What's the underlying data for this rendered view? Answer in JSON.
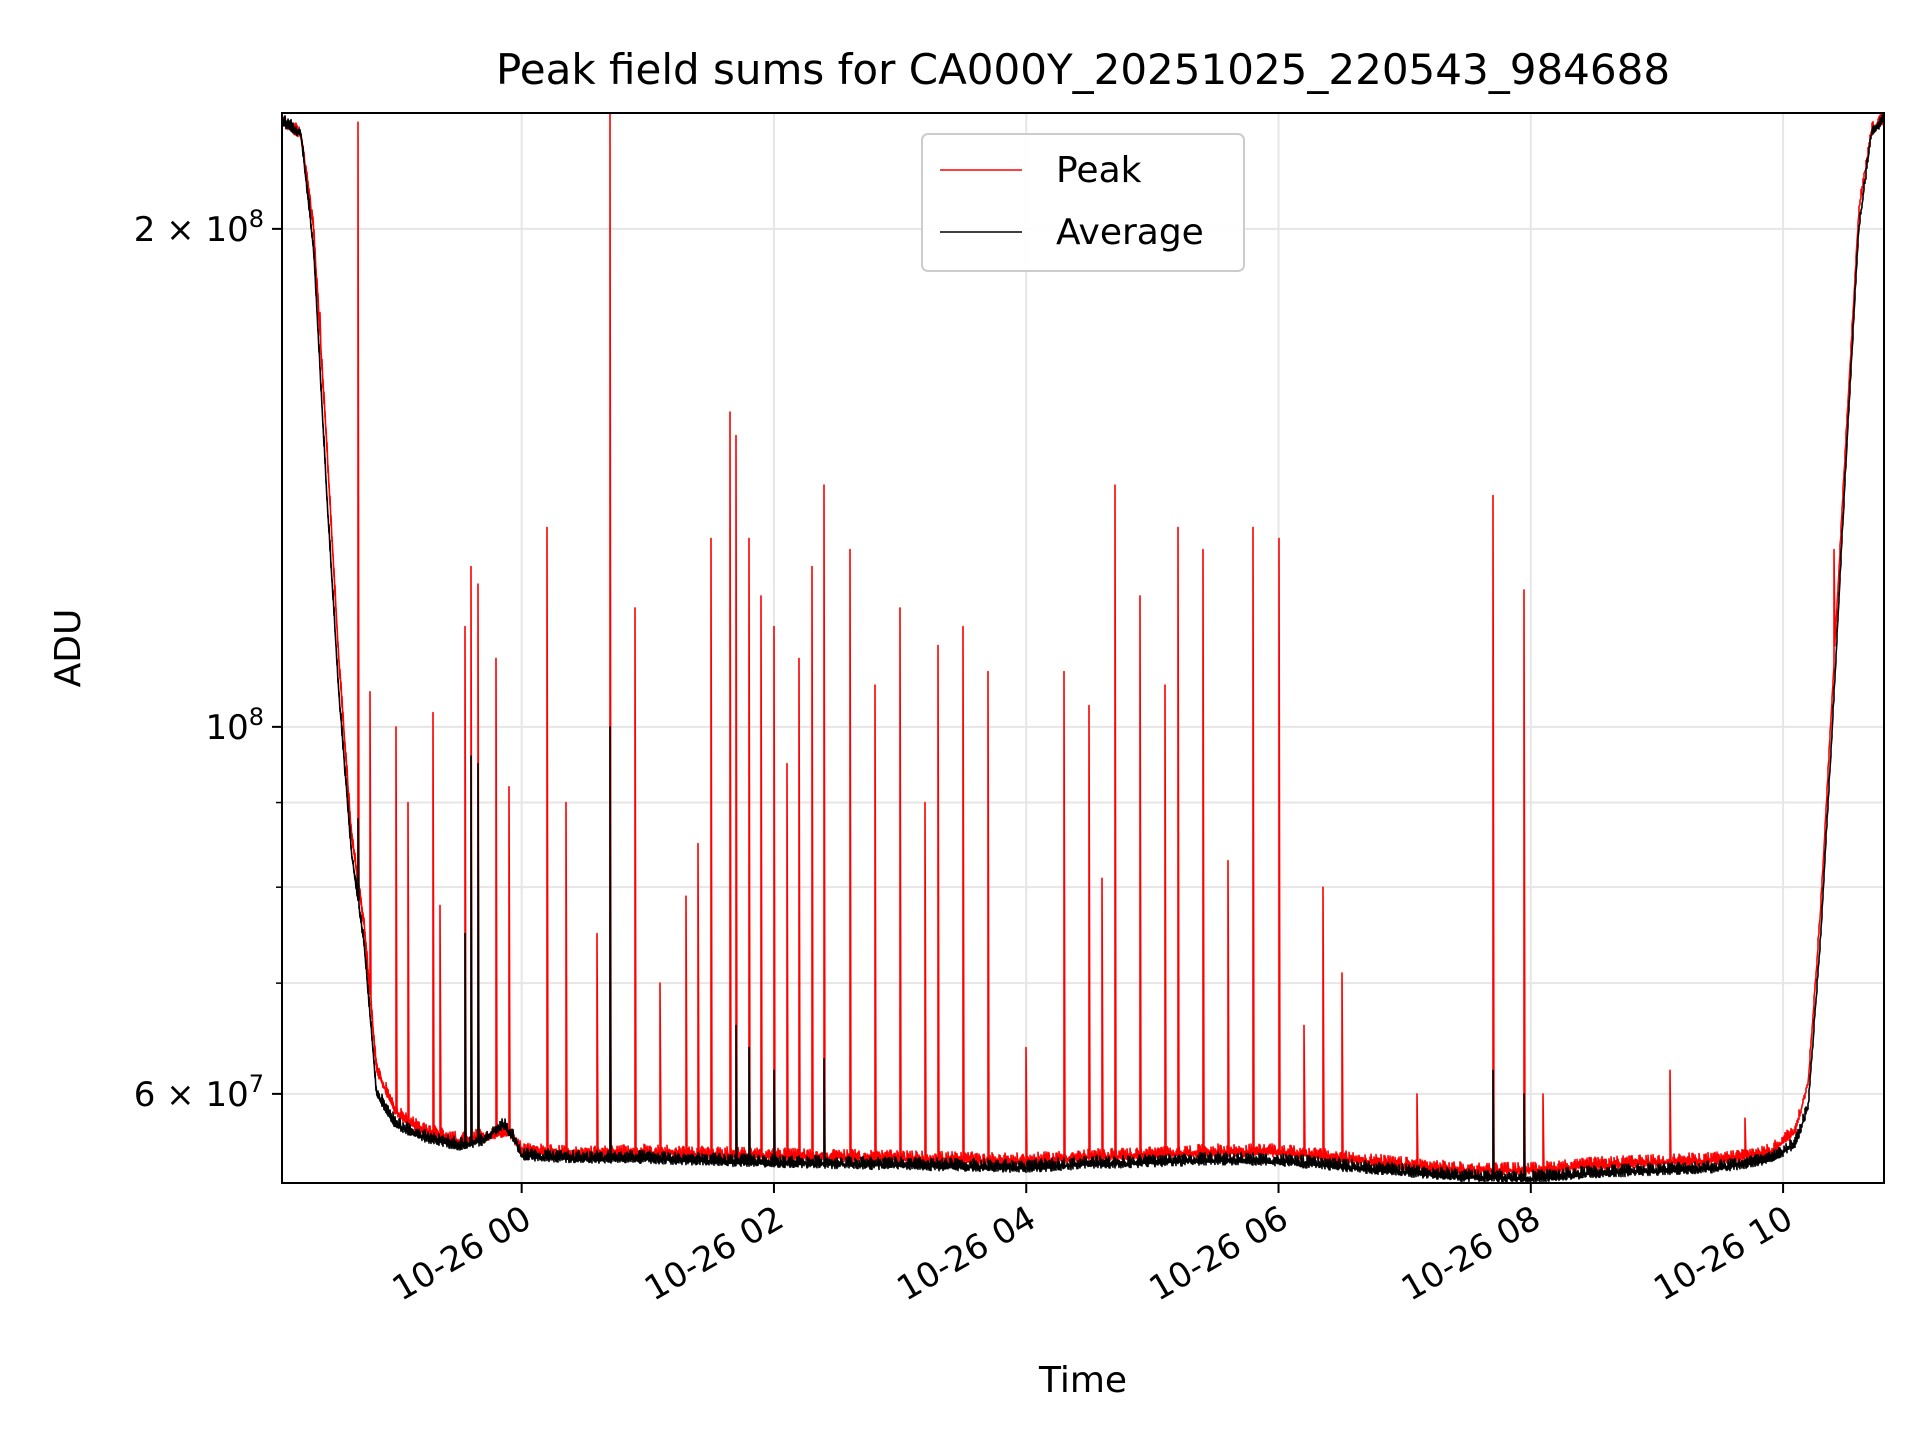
{
  "chart_data": {
    "type": "line",
    "title": "Peak field sums for CA000Y_20251025_220543_984688",
    "xlabel": "Time",
    "ylabel": "ADU",
    "yscale": "log",
    "ylim": [
      53000000,
      235000000
    ],
    "xlim_hours_from_2025_10_26_00": [
      -1.9,
      10.8
    ],
    "grid": true,
    "legend_position": "top-center",
    "x_ticks": [
      {
        "value": 0,
        "label": "10-26 00"
      },
      {
        "value": 2,
        "label": "10-26 02"
      },
      {
        "value": 4,
        "label": "10-26 04"
      },
      {
        "value": 6,
        "label": "10-26 06"
      },
      {
        "value": 8,
        "label": "10-26 08"
      },
      {
        "value": 10,
        "label": "10-26 10"
      }
    ],
    "y_major_ticks": [
      {
        "value": 200000000,
        "mantissa": "2",
        "times": "×",
        "base": "10",
        "exp": "8"
      },
      {
        "value": 100000000,
        "mantissa": "",
        "times": "",
        "base": "10",
        "exp": "8"
      },
      {
        "value": 60000000,
        "mantissa": "6",
        "times": "×",
        "base": "10",
        "exp": "7"
      }
    ],
    "y_minor_ticks": [
      70000000,
      80000000,
      90000000
    ],
    "series": [
      {
        "name": "Peak",
        "color": "#ff0000",
        "baseline": [
          [
            -1.9,
            232000000
          ],
          [
            -1.75,
            228000000
          ],
          [
            -1.65,
            200000000
          ],
          [
            -1.55,
            150000000
          ],
          [
            -1.45,
            110000000
          ],
          [
            -1.35,
            86000000
          ],
          [
            -1.25,
            76000000
          ],
          [
            -1.15,
            62000000
          ],
          [
            -1.0,
            58500000
          ],
          [
            -0.8,
            57000000
          ],
          [
            -0.5,
            56200000
          ],
          [
            -0.25,
            56600000
          ],
          [
            -0.1,
            56900000
          ],
          [
            0.0,
            55400000
          ],
          [
            0.5,
            55100000
          ],
          [
            1.0,
            55300000
          ],
          [
            1.5,
            55100000
          ],
          [
            2.0,
            55000000
          ],
          [
            2.5,
            54900000
          ],
          [
            3.0,
            54800000
          ],
          [
            3.5,
            54700000
          ],
          [
            4.0,
            54600000
          ],
          [
            4.5,
            54900000
          ],
          [
            5.0,
            55100000
          ],
          [
            5.5,
            55300000
          ],
          [
            6.0,
            55300000
          ],
          [
            6.5,
            54800000
          ],
          [
            7.0,
            54300000
          ],
          [
            7.5,
            53900000
          ],
          [
            8.0,
            53900000
          ],
          [
            8.5,
            54300000
          ],
          [
            9.0,
            54500000
          ],
          [
            9.5,
            54700000
          ],
          [
            9.9,
            55300000
          ],
          [
            10.1,
            57000000
          ],
          [
            10.2,
            61000000
          ],
          [
            10.3,
            78000000
          ],
          [
            10.4,
            108000000
          ],
          [
            10.5,
            150000000
          ],
          [
            10.6,
            205000000
          ],
          [
            10.7,
            229000000
          ],
          [
            10.8,
            233000000
          ]
        ],
        "spikes": [
          [
            -1.7,
            205000000
          ],
          [
            -1.6,
            178000000
          ],
          [
            -1.3,
            232000000
          ],
          [
            -1.2,
            105000000
          ],
          [
            -1.0,
            100000000
          ],
          [
            -0.9,
            90000000
          ],
          [
            -0.7,
            102000000
          ],
          [
            -0.65,
            78000000
          ],
          [
            -0.45,
            115000000
          ],
          [
            -0.4,
            125000000
          ],
          [
            -0.35,
            122000000
          ],
          [
            -0.2,
            110000000
          ],
          [
            -0.1,
            92000000
          ],
          [
            0.2,
            132000000
          ],
          [
            0.35,
            90000000
          ],
          [
            0.6,
            75000000
          ],
          [
            0.7,
            235000000
          ],
          [
            0.9,
            118000000
          ],
          [
            1.1,
            70000000
          ],
          [
            1.3,
            79000000
          ],
          [
            1.4,
            85000000
          ],
          [
            1.5,
            130000000
          ],
          [
            1.65,
            155000000
          ],
          [
            1.7,
            150000000
          ],
          [
            1.8,
            130000000
          ],
          [
            1.9,
            120000000
          ],
          [
            2.0,
            115000000
          ],
          [
            2.1,
            95000000
          ],
          [
            2.2,
            110000000
          ],
          [
            2.3,
            125000000
          ],
          [
            2.4,
            140000000
          ],
          [
            2.6,
            128000000
          ],
          [
            2.8,
            106000000
          ],
          [
            3.0,
            118000000
          ],
          [
            3.2,
            90000000
          ],
          [
            3.3,
            112000000
          ],
          [
            3.5,
            115000000
          ],
          [
            3.7,
            108000000
          ],
          [
            4.0,
            64000000
          ],
          [
            4.3,
            108000000
          ],
          [
            4.5,
            103000000
          ],
          [
            4.6,
            81000000
          ],
          [
            4.7,
            140000000
          ],
          [
            4.9,
            120000000
          ],
          [
            5.1,
            106000000
          ],
          [
            5.2,
            132000000
          ],
          [
            5.4,
            128000000
          ],
          [
            5.6,
            83000000
          ],
          [
            5.8,
            132000000
          ],
          [
            6.0,
            130000000
          ],
          [
            6.2,
            66000000
          ],
          [
            6.35,
            80000000
          ],
          [
            6.5,
            71000000
          ],
          [
            7.1,
            60000000
          ],
          [
            7.7,
            138000000
          ],
          [
            7.95,
            121000000
          ],
          [
            8.1,
            60000000
          ],
          [
            9.1,
            62000000
          ],
          [
            9.7,
            58000000
          ],
          [
            10.4,
            128000000
          ]
        ]
      },
      {
        "name": "Average",
        "color": "#000000",
        "baseline": [
          [
            -1.9,
            232000000
          ],
          [
            -1.75,
            228000000
          ],
          [
            -1.65,
            195000000
          ],
          [
            -1.55,
            140000000
          ],
          [
            -1.45,
            105000000
          ],
          [
            -1.35,
            84000000
          ],
          [
            -1.25,
            74000000
          ],
          [
            -1.15,
            60000000
          ],
          [
            -1.0,
            57500000
          ],
          [
            -0.8,
            56500000
          ],
          [
            -0.5,
            55800000
          ],
          [
            -0.3,
            56200000
          ],
          [
            -0.15,
            57500000
          ],
          [
            -0.05,
            56200000
          ],
          [
            0.0,
            55000000
          ],
          [
            0.5,
            54800000
          ],
          [
            1.0,
            54800000
          ],
          [
            1.5,
            54600000
          ],
          [
            2.0,
            54500000
          ],
          [
            2.5,
            54400000
          ],
          [
            3.0,
            54300000
          ],
          [
            3.5,
            54200000
          ],
          [
            4.0,
            54100000
          ],
          [
            4.5,
            54400000
          ],
          [
            5.0,
            54500000
          ],
          [
            5.5,
            54700000
          ],
          [
            6.0,
            54600000
          ],
          [
            6.5,
            54200000
          ],
          [
            7.0,
            53800000
          ],
          [
            7.5,
            53400000
          ],
          [
            8.0,
            53300000
          ],
          [
            8.5,
            53700000
          ],
          [
            9.0,
            53900000
          ],
          [
            9.5,
            54100000
          ],
          [
            9.9,
            54700000
          ],
          [
            10.1,
            56000000
          ],
          [
            10.2,
            59000000
          ],
          [
            10.3,
            75000000
          ],
          [
            10.4,
            103000000
          ],
          [
            10.5,
            145000000
          ],
          [
            10.6,
            200000000
          ],
          [
            10.7,
            228000000
          ],
          [
            10.8,
            233000000
          ]
        ],
        "spikes": [
          [
            -1.55,
            125000000
          ],
          [
            -1.3,
            88000000
          ],
          [
            -0.45,
            75000000
          ],
          [
            -0.4,
            96000000
          ],
          [
            -0.35,
            95000000
          ],
          [
            0.7,
            100000000
          ],
          [
            1.7,
            66000000
          ],
          [
            1.8,
            64000000
          ],
          [
            2.0,
            62000000
          ],
          [
            2.4,
            63000000
          ],
          [
            7.7,
            62000000
          ],
          [
            7.95,
            60000000
          ]
        ]
      }
    ]
  }
}
